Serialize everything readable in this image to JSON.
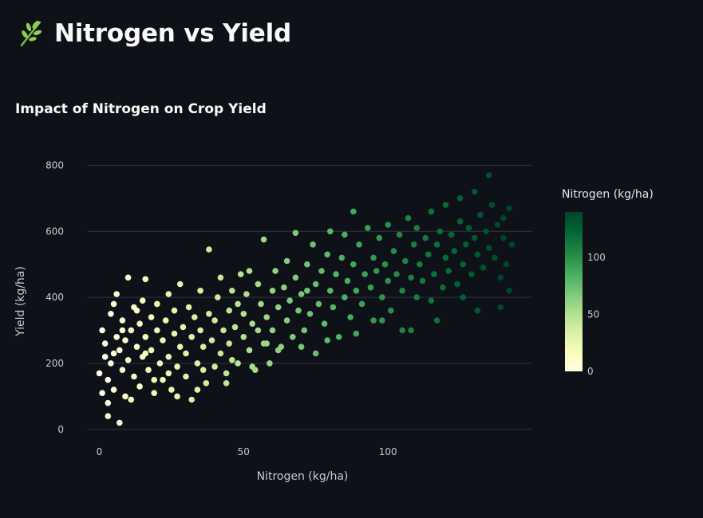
{
  "header": {
    "title": "Nitrogen vs Yield",
    "icon": "herb-icon"
  },
  "chart_data": {
    "type": "scatter",
    "title": "Impact of Nitrogen on Crop Yield",
    "xlabel": "Nitrogen (kg/ha)",
    "ylabel": "Yield (kg/ha)",
    "xlim": [
      -4,
      150
    ],
    "ylim": [
      -15,
      830
    ],
    "x_ticks": [
      0,
      50,
      100
    ],
    "y_ticks": [
      0,
      200,
      400,
      600,
      800
    ],
    "grid": "horizontal",
    "color_by": "x",
    "colorbar": {
      "title": "Nitrogen (kg/ha)",
      "range": [
        0,
        140
      ],
      "ticks": [
        0,
        50,
        100
      ],
      "placement": "right"
    },
    "colorscale": [
      "#ffffe5",
      "#f7fcb9",
      "#d9f0a3",
      "#addd8e",
      "#78c679",
      "#41ab5d",
      "#238443",
      "#006837",
      "#004529"
    ],
    "points": [
      [
        0,
        170
      ],
      [
        1,
        110
      ],
      [
        1,
        300
      ],
      [
        2,
        220
      ],
      [
        2,
        260
      ],
      [
        3,
        80
      ],
      [
        3,
        150
      ],
      [
        4,
        200
      ],
      [
        4,
        350
      ],
      [
        5,
        230
      ],
      [
        5,
        120
      ],
      [
        6,
        280
      ],
      [
        6,
        410
      ],
      [
        7,
        20
      ],
      [
        7,
        240
      ],
      [
        8,
        180
      ],
      [
        8,
        330
      ],
      [
        9,
        100
      ],
      [
        9,
        270
      ],
      [
        10,
        460
      ],
      [
        10,
        210
      ],
      [
        11,
        300
      ],
      [
        12,
        160
      ],
      [
        12,
        370
      ],
      [
        13,
        250
      ],
      [
        14,
        130
      ],
      [
        14,
        320
      ],
      [
        15,
        220
      ],
      [
        15,
        390
      ],
      [
        16,
        280
      ],
      [
        16,
        455
      ],
      [
        17,
        180
      ],
      [
        18,
        340
      ],
      [
        18,
        240
      ],
      [
        19,
        110
      ],
      [
        20,
        300
      ],
      [
        20,
        380
      ],
      [
        21,
        200
      ],
      [
        22,
        270
      ],
      [
        22,
        150
      ],
      [
        23,
        330
      ],
      [
        24,
        410
      ],
      [
        24,
        220
      ],
      [
        25,
        120
      ],
      [
        26,
        290
      ],
      [
        26,
        360
      ],
      [
        27,
        190
      ],
      [
        28,
        250
      ],
      [
        28,
        440
      ],
      [
        29,
        310
      ],
      [
        30,
        160
      ],
      [
        30,
        230
      ],
      [
        31,
        370
      ],
      [
        32,
        90
      ],
      [
        32,
        280
      ],
      [
        33,
        340
      ],
      [
        34,
        200
      ],
      [
        35,
        300
      ],
      [
        35,
        420
      ],
      [
        36,
        250
      ],
      [
        37,
        140
      ],
      [
        38,
        350
      ],
      [
        38,
        545
      ],
      [
        39,
        270
      ],
      [
        40,
        190
      ],
      [
        40,
        330
      ],
      [
        41,
        400
      ],
      [
        42,
        230
      ],
      [
        42,
        460
      ],
      [
        43,
        300
      ],
      [
        44,
        170
      ],
      [
        45,
        360
      ],
      [
        45,
        260
      ],
      [
        46,
        420
      ],
      [
        47,
        310
      ],
      [
        48,
        200
      ],
      [
        48,
        380
      ],
      [
        49,
        470
      ],
      [
        50,
        280
      ],
      [
        50,
        350
      ],
      [
        51,
        410
      ],
      [
        52,
        240
      ],
      [
        52,
        480
      ],
      [
        53,
        320
      ],
      [
        54,
        180
      ],
      [
        55,
        300
      ],
      [
        55,
        440
      ],
      [
        56,
        380
      ],
      [
        57,
        260
      ],
      [
        57,
        575
      ],
      [
        58,
        340
      ],
      [
        59,
        200
      ],
      [
        60,
        420
      ],
      [
        60,
        300
      ],
      [
        61,
        480
      ],
      [
        62,
        370
      ],
      [
        63,
        250
      ],
      [
        64,
        430
      ],
      [
        65,
        330
      ],
      [
        65,
        510
      ],
      [
        66,
        390
      ],
      [
        67,
        280
      ],
      [
        68,
        460
      ],
      [
        68,
        595
      ],
      [
        69,
        360
      ],
      [
        70,
        410
      ],
      [
        71,
        300
      ],
      [
        72,
        500
      ],
      [
        72,
        420
      ],
      [
        73,
        350
      ],
      [
        74,
        560
      ],
      [
        75,
        440
      ],
      [
        75,
        230
      ],
      [
        76,
        380
      ],
      [
        77,
        480
      ],
      [
        78,
        320
      ],
      [
        79,
        530
      ],
      [
        80,
        420
      ],
      [
        80,
        600
      ],
      [
        81,
        370
      ],
      [
        82,
        470
      ],
      [
        83,
        280
      ],
      [
        84,
        520
      ],
      [
        85,
        400
      ],
      [
        85,
        590
      ],
      [
        86,
        450
      ],
      [
        87,
        340
      ],
      [
        88,
        660
      ],
      [
        88,
        500
      ],
      [
        89,
        420
      ],
      [
        90,
        560
      ],
      [
        91,
        380
      ],
      [
        92,
        470
      ],
      [
        93,
        610
      ],
      [
        94,
        430
      ],
      [
        95,
        520
      ],
      [
        95,
        330
      ],
      [
        96,
        480
      ],
      [
        97,
        580
      ],
      [
        98,
        400
      ],
      [
        99,
        500
      ],
      [
        100,
        450
      ],
      [
        100,
        620
      ],
      [
        101,
        360
      ],
      [
        102,
        540
      ],
      [
        103,
        470
      ],
      [
        104,
        590
      ],
      [
        105,
        420
      ],
      [
        105,
        300
      ],
      [
        106,
        510
      ],
      [
        107,
        640
      ],
      [
        108,
        460
      ],
      [
        109,
        560
      ],
      [
        110,
        400
      ],
      [
        110,
        610
      ],
      [
        111,
        500
      ],
      [
        112,
        450
      ],
      [
        113,
        580
      ],
      [
        114,
        530
      ],
      [
        115,
        390
      ],
      [
        115,
        660
      ],
      [
        116,
        470
      ],
      [
        117,
        560
      ],
      [
        118,
        600
      ],
      [
        119,
        430
      ],
      [
        120,
        520
      ],
      [
        120,
        680
      ],
      [
        121,
        480
      ],
      [
        122,
        590
      ],
      [
        123,
        540
      ],
      [
        124,
        440
      ],
      [
        125,
        630
      ],
      [
        125,
        700
      ],
      [
        126,
        500
      ],
      [
        127,
        560
      ],
      [
        128,
        610
      ],
      [
        129,
        470
      ],
      [
        130,
        580
      ],
      [
        130,
        720
      ],
      [
        131,
        530
      ],
      [
        132,
        650
      ],
      [
        133,
        490
      ],
      [
        134,
        600
      ],
      [
        135,
        550
      ],
      [
        135,
        770
      ],
      [
        136,
        680
      ],
      [
        137,
        520
      ],
      [
        138,
        620
      ],
      [
        139,
        460
      ],
      [
        140,
        580
      ],
      [
        140,
        640
      ],
      [
        141,
        500
      ],
      [
        142,
        670
      ],
      [
        142,
        420
      ],
      [
        143,
        560
      ],
      [
        139,
        370
      ],
      [
        131,
        360
      ],
      [
        126,
        400
      ],
      [
        117,
        330
      ],
      [
        108,
        300
      ],
      [
        98,
        330
      ],
      [
        89,
        290
      ],
      [
        79,
        270
      ],
      [
        70,
        250
      ],
      [
        62,
        240
      ],
      [
        53,
        190
      ],
      [
        44,
        140
      ],
      [
        34,
        120
      ],
      [
        27,
        100
      ],
      [
        19,
        150
      ],
      [
        11,
        90
      ],
      [
        3,
        40
      ],
      [
        46,
        210
      ],
      [
        58,
        260
      ],
      [
        36,
        180
      ],
      [
        24,
        170
      ],
      [
        16,
        230
      ],
      [
        8,
        300
      ],
      [
        5,
        380
      ],
      [
        13,
        360
      ]
    ]
  }
}
